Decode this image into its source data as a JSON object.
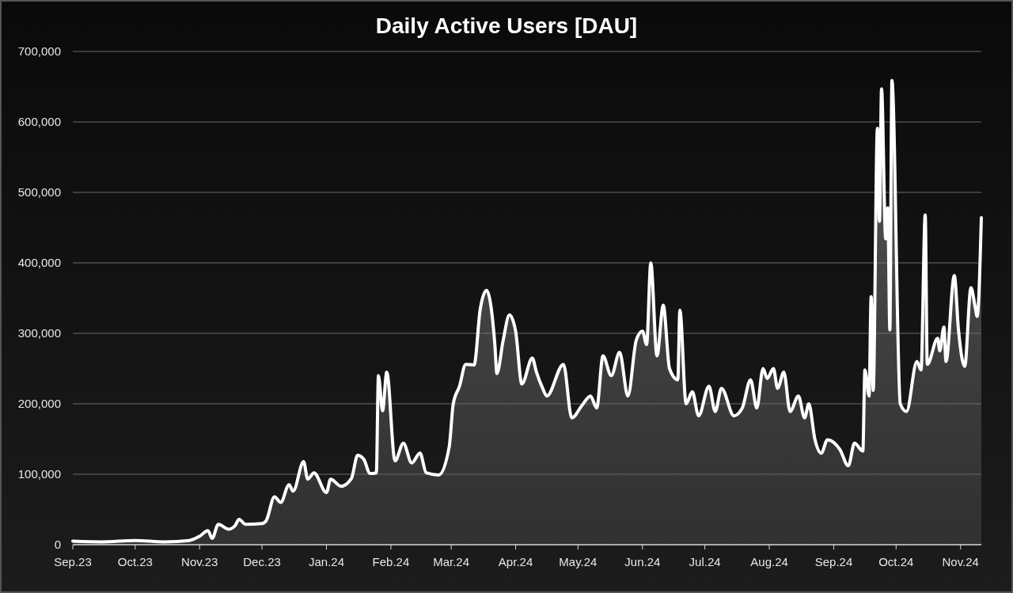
{
  "chart_data": {
    "type": "area",
    "title": "Daily Active Users [DAU]",
    "x": [
      "2023-09-01",
      "2023-09-15",
      "2023-10-01",
      "2023-10-15",
      "2023-10-27",
      "2023-11-01",
      "2023-11-05",
      "2023-11-07",
      "2023-11-10",
      "2023-11-15",
      "2023-11-18",
      "2023-11-20",
      "2023-11-23",
      "2023-12-01",
      "2023-12-03",
      "2023-12-07",
      "2023-12-10",
      "2023-12-14",
      "2023-12-16",
      "2023-12-21",
      "2023-12-23",
      "2023-12-26",
      "2024-01-01",
      "2024-01-03",
      "2024-01-08",
      "2024-01-13",
      "2024-01-16",
      "2024-01-19",
      "2024-01-22",
      "2024-01-25",
      "2024-01-26",
      "2024-01-28",
      "2024-01-30",
      "2024-02-03",
      "2024-02-07",
      "2024-02-11",
      "2024-02-15",
      "2024-02-18",
      "2024-02-24",
      "2024-02-29",
      "2024-03-02",
      "2024-03-05",
      "2024-03-08",
      "2024-03-12",
      "2024-03-15",
      "2024-03-18",
      "2024-03-22",
      "2024-03-23",
      "2024-03-26",
      "2024-03-29",
      "2024-04-01",
      "2024-04-04",
      "2024-04-09",
      "2024-04-11",
      "2024-04-14",
      "2024-04-16",
      "2024-04-24",
      "2024-04-28",
      "2024-05-03",
      "2024-05-07",
      "2024-05-10",
      "2024-05-13",
      "2024-05-17",
      "2024-05-21",
      "2024-05-25",
      "2024-05-29",
      "2024-06-01",
      "2024-06-03",
      "2024-06-05",
      "2024-06-08",
      "2024-06-11",
      "2024-06-14",
      "2024-06-18",
      "2024-06-19",
      "2024-06-22",
      "2024-06-25",
      "2024-06-28",
      "2024-07-03",
      "2024-07-06",
      "2024-07-09",
      "2024-07-15",
      "2024-07-19",
      "2024-07-23",
      "2024-07-26",
      "2024-07-29",
      "2024-07-31",
      "2024-08-03",
      "2024-08-05",
      "2024-08-08",
      "2024-08-11",
      "2024-08-15",
      "2024-08-18",
      "2024-08-20",
      "2024-08-23",
      "2024-08-26",
      "2024-08-29",
      "2024-09-04",
      "2024-09-08",
      "2024-09-11",
      "2024-09-15",
      "2024-09-16",
      "2024-09-18",
      "2024-09-19",
      "2024-09-20",
      "2024-09-22",
      "2024-09-23",
      "2024-09-24",
      "2024-09-26",
      "2024-09-27",
      "2024-09-28",
      "2024-09-29",
      "2024-10-03",
      "2024-10-06",
      "2024-10-11",
      "2024-10-13",
      "2024-10-15",
      "2024-10-16",
      "2024-10-21",
      "2024-10-22",
      "2024-10-24",
      "2024-10-25",
      "2024-10-29",
      "2024-10-31",
      "2024-11-03",
      "2024-11-06",
      "2024-11-08",
      "2024-11-09",
      "2024-11-11"
    ],
    "series": [
      {
        "color": "#ffffff",
        "values": [
          5000,
          4000,
          6000,
          4000,
          6000,
          12000,
          20000,
          9000,
          29000,
          22000,
          27000,
          36000,
          29000,
          30000,
          34000,
          68000,
          60000,
          85000,
          76000,
          118000,
          93000,
          102000,
          74000,
          93000,
          83000,
          94000,
          127000,
          121000,
          101000,
          102000,
          240000,
          190000,
          245000,
          119000,
          144000,
          116000,
          130000,
          102000,
          99000,
          138000,
          200000,
          225000,
          256000,
          255000,
          335000,
          361000,
          284000,
          243000,
          290000,
          326000,
          303000,
          228000,
          265000,
          245000,
          222000,
          211000,
          256000,
          180000,
          198000,
          211000,
          194000,
          268000,
          240000,
          273000,
          211000,
          290000,
          303000,
          284000,
          400000,
          268000,
          340000,
          250000,
          234000,
          333000,
          200000,
          217000,
          183000,
          225000,
          189000,
          222000,
          183000,
          194000,
          234000,
          194000,
          250000,
          236000,
          250000,
          222000,
          245000,
          189000,
          211000,
          180000,
          200000,
          149000,
          130000,
          149000,
          135000,
          112000,
          144000,
          133000,
          248000,
          211000,
          352000,
          219000,
          591000,
          459000,
          647000,
          434000,
          478000,
          305000,
          659000,
          200000,
          189000,
          260000,
          248000,
          468000,
          256000,
          293000,
          275000,
          309000,
          260000,
          382000,
          305000,
          253000,
          365000,
          338000,
          324000,
          464000
        ]
      }
    ],
    "xlim": [
      "2023-09-01",
      "2024-11-11"
    ],
    "xticks": [
      {
        "value": "2023-09-01",
        "label": "Sep.23"
      },
      {
        "value": "2023-10-01",
        "label": "Oct.23"
      },
      {
        "value": "2023-11-01",
        "label": "Nov.23"
      },
      {
        "value": "2023-12-01",
        "label": "Dec.23"
      },
      {
        "value": "2024-01-01",
        "label": "Jan.24"
      },
      {
        "value": "2024-02-01",
        "label": "Feb.24"
      },
      {
        "value": "2024-03-01",
        "label": "Mar.24"
      },
      {
        "value": "2024-04-01",
        "label": "Apr.24"
      },
      {
        "value": "2024-05-01",
        "label": "May.24"
      },
      {
        "value": "2024-06-01",
        "label": "Jun.24"
      },
      {
        "value": "2024-07-01",
        "label": "Jul.24"
      },
      {
        "value": "2024-08-01",
        "label": "Aug.24"
      },
      {
        "value": "2024-09-01",
        "label": "Sep.24"
      },
      {
        "value": "2024-10-01",
        "label": "Oct.24"
      },
      {
        "value": "2024-11-01",
        "label": "Nov.24"
      }
    ],
    "ylim": [
      0,
      700000
    ],
    "yticks": [
      0,
      {
        "value": 100000,
        "label": "100,000"
      },
      {
        "value": 200000,
        "label": "200,000"
      },
      {
        "value": 300000,
        "label": "300,000"
      },
      {
        "value": 400000,
        "label": "400,000"
      },
      {
        "value": 500000,
        "label": "500,000"
      },
      {
        "value": 600000,
        "label": "600,000"
      },
      {
        "value": 700000,
        "label": "700,000"
      }
    ],
    "grid": "y"
  }
}
